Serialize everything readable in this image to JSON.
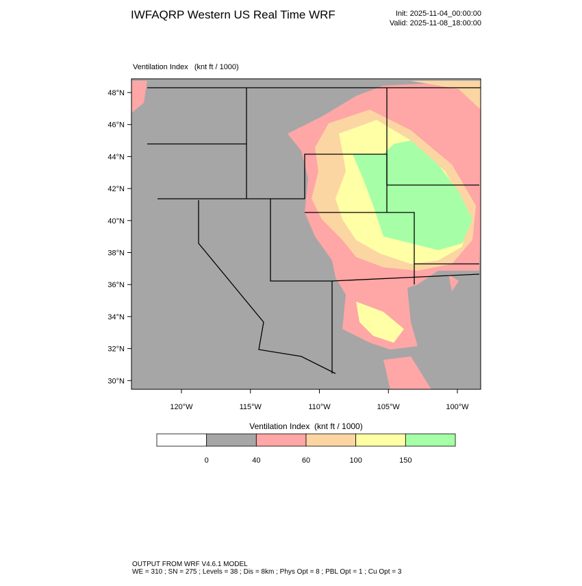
{
  "header": {
    "title": "IWFAQRP Western US Real Time WRF",
    "init": "Init: 2025-11-04_00:00:00",
    "valid": "Valid: 2025-11-08_18:00:00"
  },
  "map": {
    "field_label": "Ventilation Index   (knt ft / 1000)",
    "lat_labels": [
      "48°N",
      "46°N",
      "44°N",
      "42°N",
      "40°N",
      "38°N",
      "36°N",
      "34°N",
      "32°N",
      "30°N"
    ],
    "lon_labels": [
      "120°W",
      "115°W",
      "110°W",
      "105°W",
      "100°W"
    ]
  },
  "colorbar": {
    "title": "Ventilation Index  (knt ft / 1000)",
    "colors": [
      "#ffffff",
      "#a6a6a6",
      "#ffa6a6",
      "#fcd6a2",
      "#ffffa6",
      "#a6ffa6"
    ],
    "labels": [
      "0",
      "40",
      "60",
      "100",
      "150"
    ]
  },
  "footer": {
    "line1": "OUTPUT FROM WRF V4.6.1 MODEL",
    "line2": "WE = 310 ; SN = 275 ; Levels = 38 ; Dis = 8km ; Phys Opt = 8 ; PBL Opt = 1 ; Cu Opt = 3"
  }
}
